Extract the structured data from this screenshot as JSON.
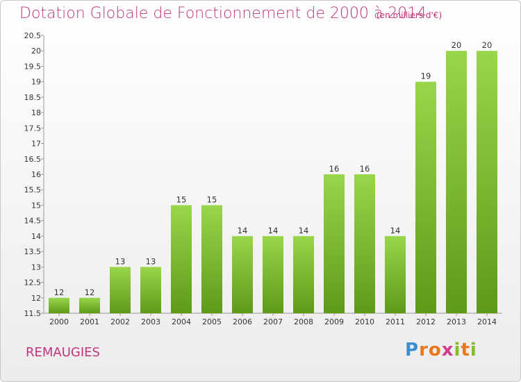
{
  "header": {
    "title": "Dotation Globale de Fonctionnement de 2000 à 2014",
    "unit": "(en milliers d'€)"
  },
  "footer": {
    "place": "REMAUGIES"
  },
  "logo": {
    "letters": [
      "P",
      "r",
      "o",
      "x",
      "i",
      "t",
      "i"
    ],
    "colors": [
      "#3b8fd1",
      "#e8771e",
      "#e8771e",
      "#d33a8f",
      "#89b82b",
      "#e8771e",
      "#89b82b"
    ]
  },
  "colors": {
    "bar_top": "#9ad64a",
    "bar_bottom": "#5e9a18",
    "accent": "#c2347a"
  },
  "chart_data": {
    "type": "bar",
    "categories": [
      "2000",
      "2001",
      "2002",
      "2003",
      "2004",
      "2005",
      "2006",
      "2007",
      "2008",
      "2009",
      "2010",
      "2011",
      "2012",
      "2013",
      "2014"
    ],
    "values": [
      12,
      12,
      13,
      13,
      15,
      15,
      14,
      14,
      14,
      16,
      16,
      14,
      19,
      20,
      20
    ],
    "ylim": [
      11.5,
      20.5
    ],
    "yticks": [
      "11.5",
      "12",
      "12.5",
      "13",
      "13.5",
      "14",
      "14.5",
      "15",
      "15.5",
      "16",
      "16.5",
      "17",
      "17.5",
      "18",
      "18.5",
      "19",
      "19.5",
      "20",
      "20.5"
    ],
    "grid": false,
    "legend": "none"
  }
}
